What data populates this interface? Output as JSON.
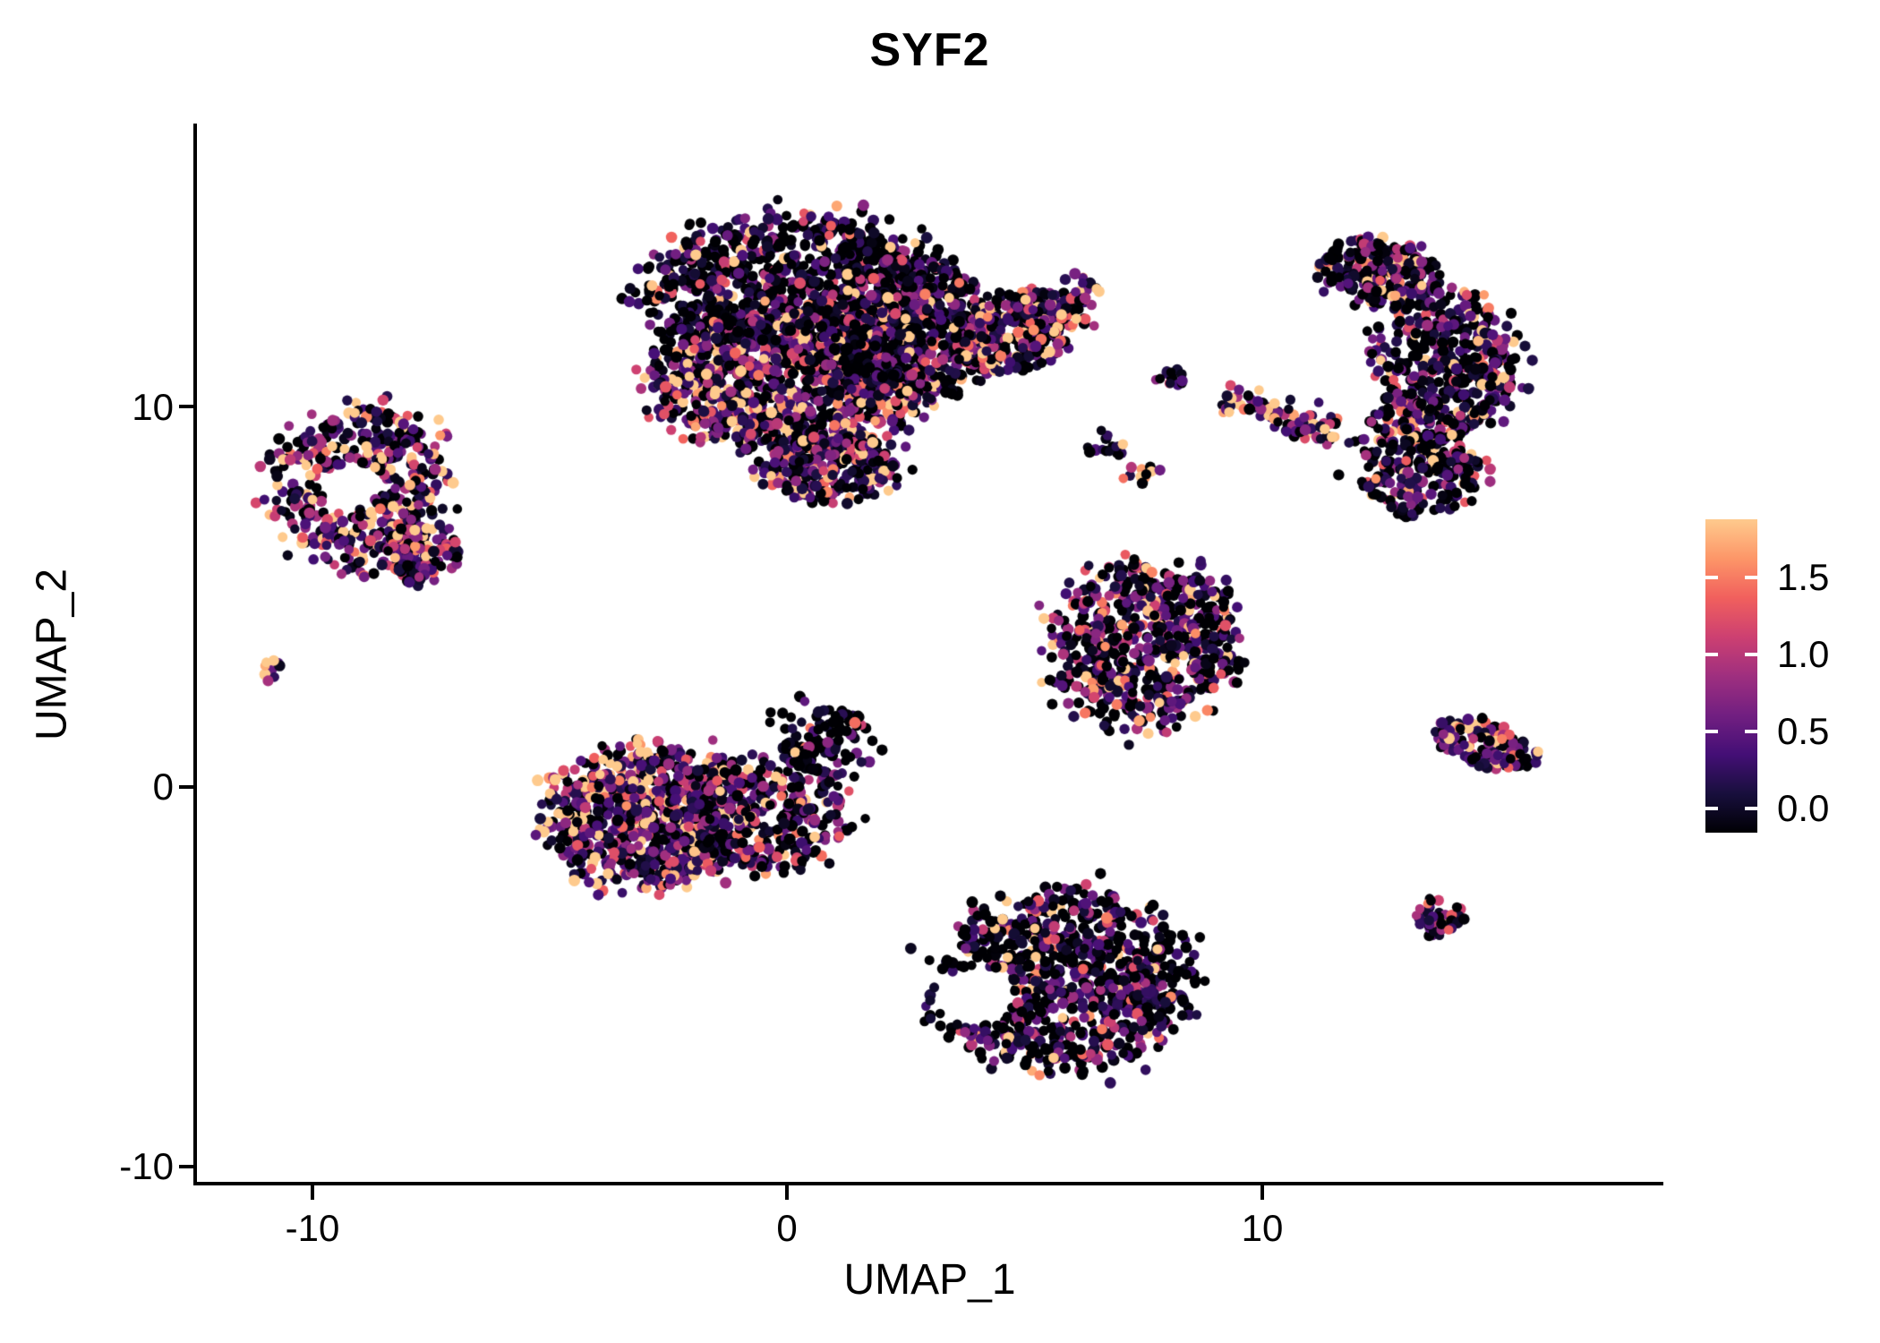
{
  "title": "SYF2",
  "axes": {
    "xlabel": "UMAP_1",
    "ylabel": "UMAP_2",
    "xtick_labels": [
      "-10",
      "0",
      "10"
    ],
    "ytick_labels": [
      "-10",
      "0",
      "10"
    ],
    "xticks": [
      -10,
      0,
      10
    ],
    "yticks": [
      -10,
      0,
      10
    ]
  },
  "colorbar": {
    "ticks": [
      0.0,
      0.5,
      1.0,
      1.5
    ],
    "tick_labels": [
      "0.0",
      "0.5",
      "1.0",
      "1.5"
    ],
    "domain": [
      0,
      1.9
    ],
    "gradient_stops": [
      "#000004",
      "#180f3d",
      "#440f76",
      "#721f81",
      "#9f2f7f",
      "#cd4071",
      "#f1605d",
      "#fd9668",
      "#feca8d"
    ]
  },
  "chart_data": {
    "type": "scatter",
    "title": "SYF2",
    "xlabel": "UMAP_1",
    "ylabel": "UMAP_2",
    "xlim": [
      -12.4,
      18.4
    ],
    "ylim": [
      -10.4,
      17.4
    ],
    "grid": false,
    "legend_position": "right",
    "color_scale": "magma",
    "value_range": [
      0,
      1.9
    ],
    "clusters": [
      {
        "name": "top-main-upper",
        "shape": "blob",
        "cx": 0.2,
        "cy": 13.1,
        "rx": 3.3,
        "ry": 1.9,
        "rot": 0,
        "n": 900,
        "zero_frac": 0.38,
        "mean_expr": 0.6
      },
      {
        "name": "top-main-lower",
        "shape": "blob",
        "cx": 0.0,
        "cy": 10.7,
        "rx": 2.9,
        "ry": 1.9,
        "rot": 0,
        "n": 950,
        "zero_frac": 0.22,
        "mean_expr": 0.9
      },
      {
        "name": "top-main-right",
        "shape": "blob",
        "cx": 2.3,
        "cy": 12.0,
        "rx": 2.1,
        "ry": 1.9,
        "rot": 0,
        "n": 500,
        "zero_frac": 0.35,
        "mean_expr": 0.65
      },
      {
        "name": "top-main-tip",
        "shape": "blob",
        "cx": 0.9,
        "cy": 8.4,
        "rx": 1.5,
        "ry": 0.9,
        "rot": 0,
        "n": 280,
        "zero_frac": 0.25,
        "mean_expr": 0.8
      },
      {
        "name": "top-arm",
        "shape": "blob",
        "cx": 4.7,
        "cy": 11.9,
        "rx": 1.5,
        "ry": 1.0,
        "rot": 25,
        "n": 330,
        "zero_frac": 0.25,
        "mean_expr": 0.8
      },
      {
        "name": "top-arm-streak",
        "shape": "streak",
        "x1": 5.0,
        "y1": 12.3,
        "x2": 6.5,
        "y2": 13.2,
        "w": 0.22,
        "n": 60,
        "zero_frac": 0.1,
        "mean_expr": 1.0
      },
      {
        "name": "left-ring",
        "shape": "blob",
        "cx": -9.0,
        "cy": 7.8,
        "rx": 1.9,
        "ry": 2.2,
        "rot": -10,
        "n": 430,
        "hole": {
          "x": -9.2,
          "y": 7.9,
          "r": 0.6
        },
        "zero_frac": 0.2,
        "mean_expr": 0.85
      },
      {
        "name": "left-ring-tail",
        "shape": "blob",
        "cx": -7.7,
        "cy": 6.2,
        "rx": 0.8,
        "ry": 0.9,
        "rot": 0,
        "n": 120,
        "zero_frac": 0.25,
        "mean_expr": 0.8
      },
      {
        "name": "left-dot",
        "shape": "blob",
        "cx": -10.85,
        "cy": 3.1,
        "rx": 0.22,
        "ry": 0.3,
        "rot": 0,
        "n": 10,
        "zero_frac": 0.1,
        "mean_expr": 0.9
      },
      {
        "name": "centerleft-main",
        "shape": "blob",
        "cx": -3.0,
        "cy": -0.8,
        "rx": 2.1,
        "ry": 1.9,
        "rot": 0,
        "n": 720,
        "zero_frac": 0.15,
        "mean_expr": 1.0
      },
      {
        "name": "centerleft-right",
        "shape": "blob",
        "cx": -0.6,
        "cy": -0.7,
        "rx": 1.9,
        "ry": 1.5,
        "rot": 0,
        "n": 350,
        "zero_frac": 0.3,
        "mean_expr": 0.75
      },
      {
        "name": "centerleft-ext",
        "shape": "streak",
        "x1": 0.2,
        "y1": 0.5,
        "x2": 1.3,
        "y2": 2.0,
        "w": 0.5,
        "n": 120,
        "zero_frac": 0.5,
        "mean_expr": 0.5
      },
      {
        "name": "bottom-cluster",
        "shape": "blob",
        "cx": 5.8,
        "cy": -5.1,
        "rx": 2.7,
        "ry": 2.3,
        "rot": 10,
        "n": 850,
        "hole": {
          "x": 4.0,
          "y": -5.5,
          "r": 0.8
        },
        "zero_frac": 0.38,
        "mean_expr": 0.65
      },
      {
        "name": "midright-triangle",
        "shape": "blob",
        "cx": 7.5,
        "cy": 3.7,
        "rx": 2.0,
        "ry": 2.2,
        "rot": 0,
        "n": 650,
        "zero_frac": 0.3,
        "mean_expr": 0.78
      },
      {
        "name": "right-top",
        "shape": "blob",
        "cx": 12.5,
        "cy": 13.5,
        "rx": 1.3,
        "ry": 0.9,
        "rot": -20,
        "n": 230,
        "zero_frac": 0.35,
        "mean_expr": 0.7
      },
      {
        "name": "right-main",
        "shape": "blob",
        "cx": 13.9,
        "cy": 11.2,
        "rx": 1.5,
        "ry": 1.9,
        "rot": 0,
        "n": 380,
        "zero_frac": 0.35,
        "mean_expr": 0.7
      },
      {
        "name": "right-lower",
        "shape": "blob",
        "cx": 13.3,
        "cy": 8.7,
        "rx": 1.3,
        "ry": 1.7,
        "rot": 10,
        "n": 300,
        "zero_frac": 0.35,
        "mean_expr": 0.72
      },
      {
        "name": "small-pair",
        "shape": "blob",
        "cx": 8.1,
        "cy": 10.8,
        "rx": 0.3,
        "ry": 0.25,
        "rot": 0,
        "n": 14,
        "zero_frac": 0.3,
        "mean_expr": 0.7
      },
      {
        "name": "diag-streak",
        "shape": "streak",
        "x1": 9.2,
        "y1": 10.2,
        "x2": 11.6,
        "y2": 9.3,
        "w": 0.22,
        "n": 80,
        "zero_frac": 0.12,
        "mean_expr": 1.0
      },
      {
        "name": "small-streak-1",
        "shape": "streak",
        "x1": 6.4,
        "y1": 9.1,
        "x2": 7.1,
        "y2": 8.8,
        "w": 0.15,
        "n": 16,
        "zero_frac": 0.15,
        "mean_expr": 1.0
      },
      {
        "name": "small-streak-2",
        "shape": "streak",
        "x1": 7.2,
        "y1": 8.4,
        "x2": 7.8,
        "y2": 8.1,
        "w": 0.13,
        "n": 12,
        "zero_frac": 0.2,
        "mean_expr": 0.9
      },
      {
        "name": "right-arrow",
        "shape": "blob",
        "cx": 14.7,
        "cy": 1.1,
        "rx": 1.1,
        "ry": 0.55,
        "rot": -20,
        "n": 150,
        "zero_frac": 0.18,
        "mean_expr": 0.95
      },
      {
        "name": "right-tiny",
        "shape": "blob",
        "cx": 13.7,
        "cy": -3.4,
        "rx": 0.5,
        "ry": 0.55,
        "rot": 0,
        "n": 48,
        "zero_frac": 0.2,
        "mean_expr": 0.9
      }
    ]
  }
}
